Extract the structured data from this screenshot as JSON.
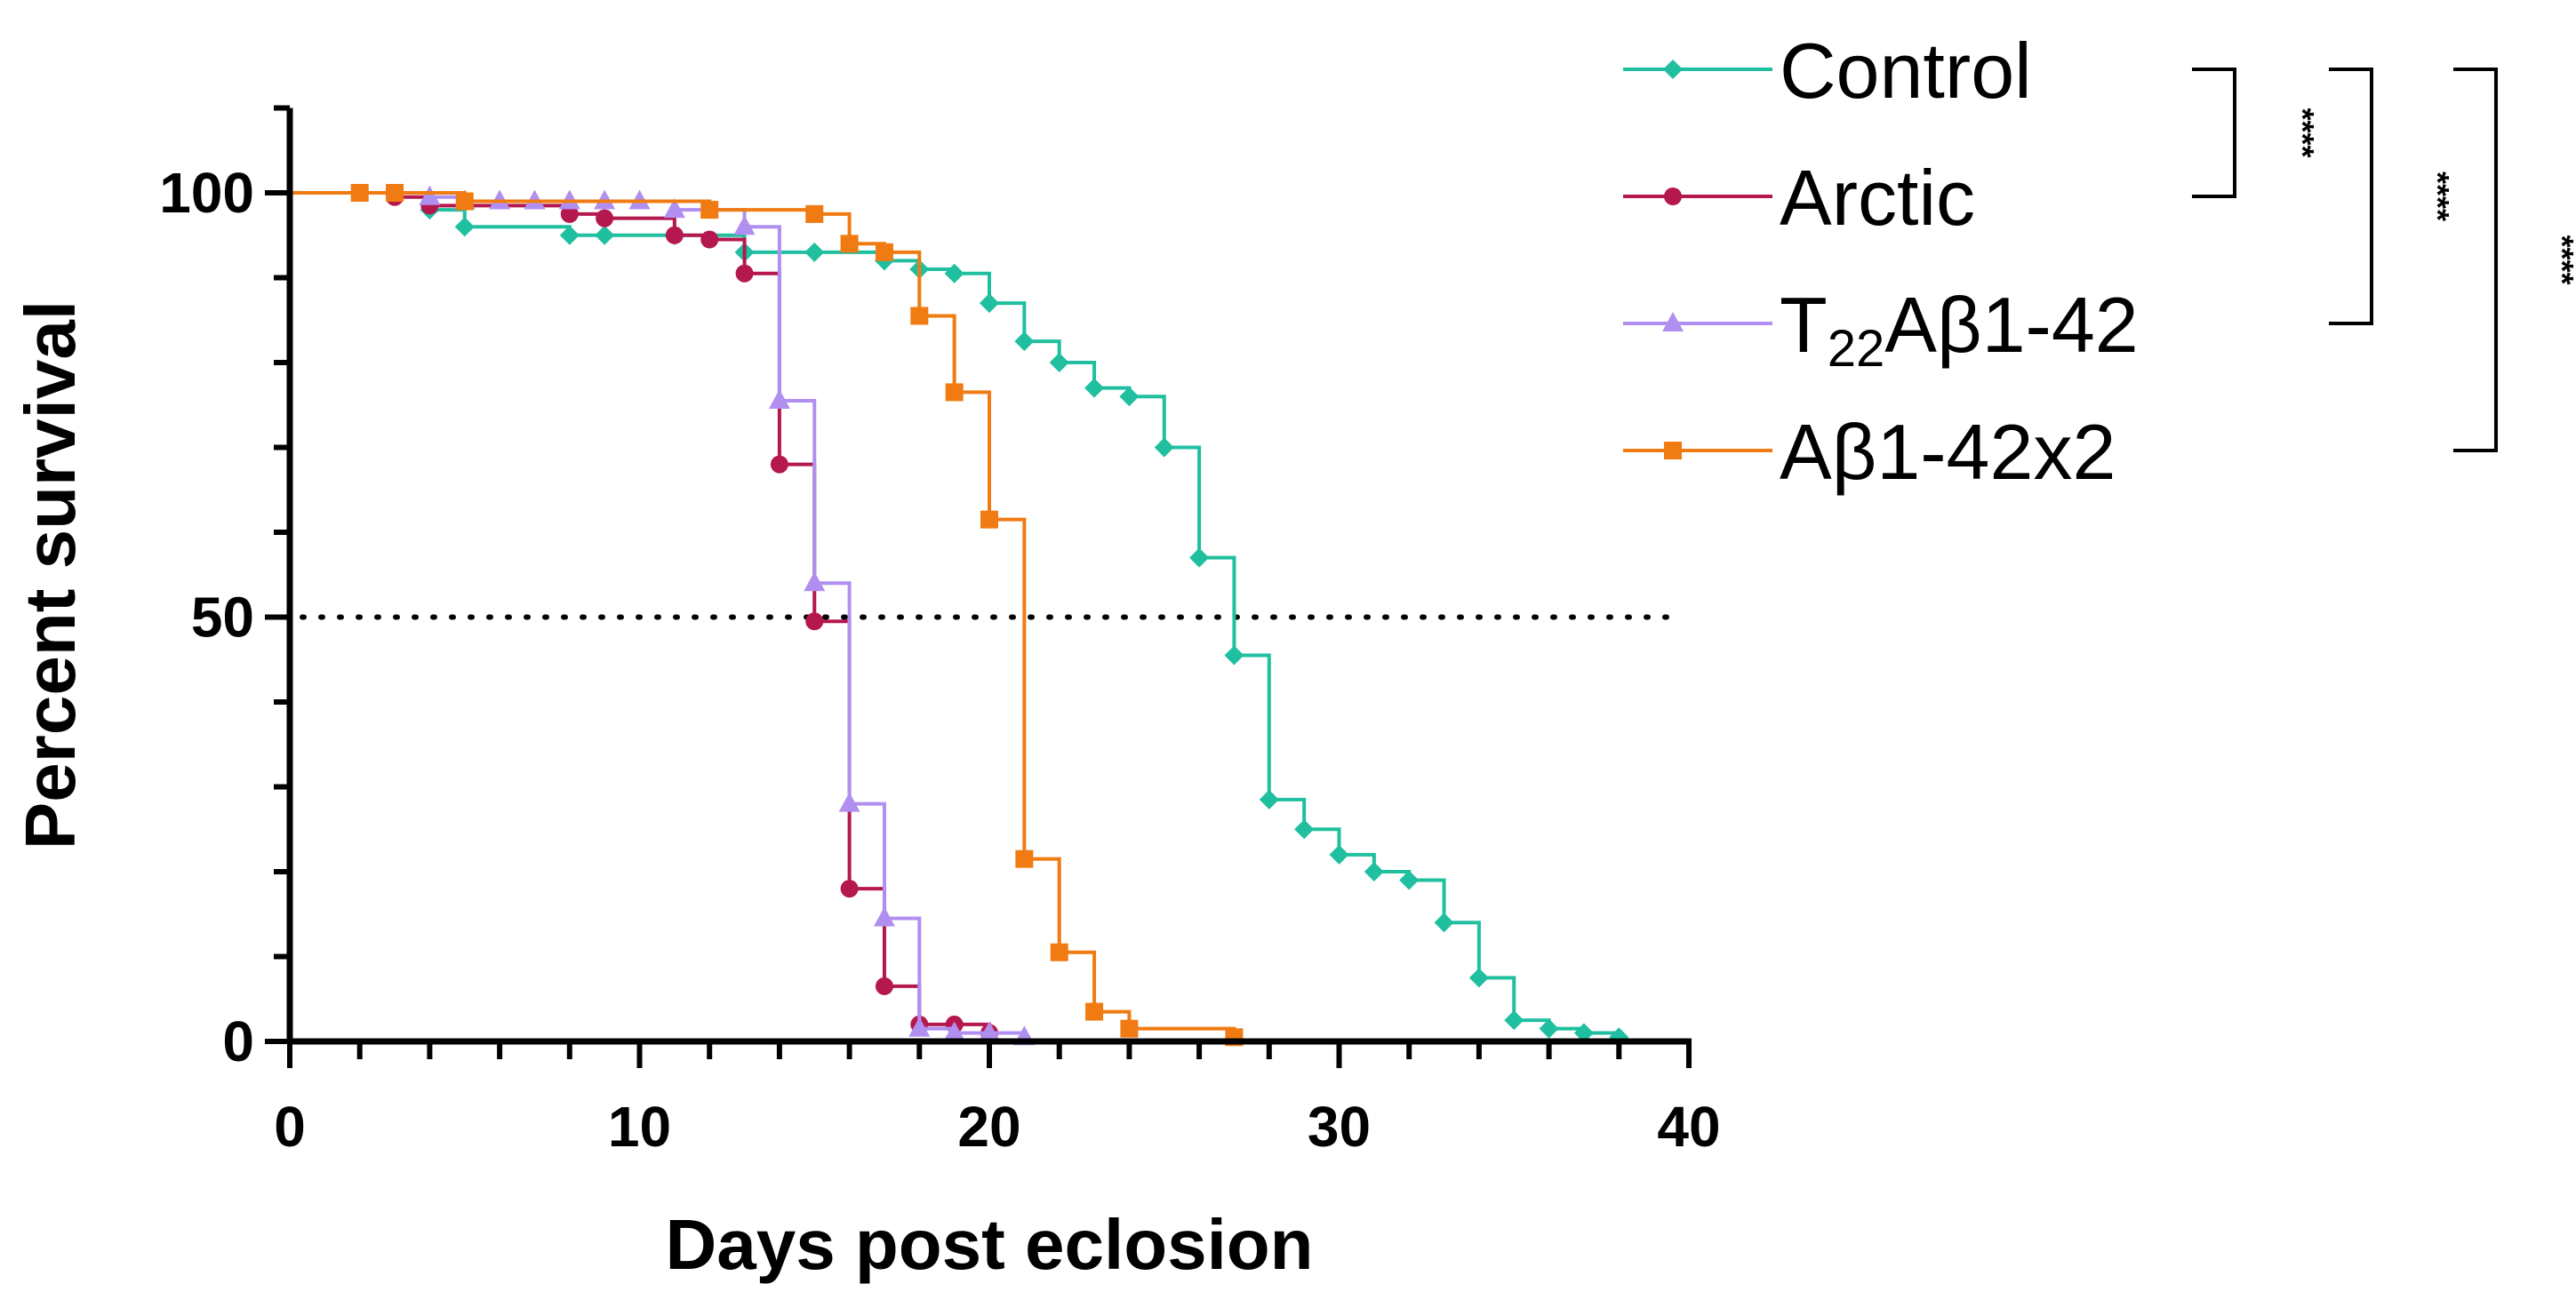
{
  "chart_data": {
    "type": "line",
    "subtype": "kaplan-meier step survival curves",
    "title": "",
    "xlabel": "Days post eclosion",
    "ylabel": "Percent survival",
    "xlim": [
      0,
      40
    ],
    "ylim": [
      0,
      110
    ],
    "xticks": [
      0,
      10,
      20,
      30,
      40
    ],
    "yticks": [
      0,
      50,
      100
    ],
    "xtick_labels": [
      "0",
      "10",
      "20",
      "30",
      "40"
    ],
    "ytick_labels": [
      "0",
      "50",
      "100"
    ],
    "reference_line": {
      "y": 50,
      "x_range": [
        0,
        39.5
      ],
      "style": "dotted"
    },
    "legend_position": "top-right, outside plot",
    "series": [
      {
        "name": "Control",
        "sub": "",
        "name_rest": "",
        "color": "#1fbf9f",
        "marker": "diamond",
        "x": [
          0,
          4,
          5,
          8,
          9,
          11,
          13,
          15,
          17,
          18,
          19,
          20,
          21,
          22,
          23,
          24,
          25,
          26,
          27,
          28,
          29,
          30,
          31,
          32,
          33,
          34,
          35,
          36,
          37,
          38
        ],
        "y": [
          100,
          98,
          96,
          95,
          95,
          95,
          93,
          93,
          92,
          91,
          90.5,
          87,
          82.5,
          80,
          77,
          76,
          70,
          57,
          45.5,
          28.5,
          25,
          22,
          20,
          19,
          14,
          7.5,
          2.5,
          1.5,
          1,
          0.5
        ]
      },
      {
        "name": "Arctic",
        "sub": "",
        "name_rest": "",
        "color": "#b5174f",
        "marker": "circle",
        "x": [
          0,
          3,
          4,
          8,
          9,
          11,
          12,
          13,
          14,
          15,
          16,
          17,
          18,
          19,
          20
        ],
        "y": [
          100,
          99.5,
          98.5,
          97.5,
          97,
          95,
          94.5,
          90.5,
          68,
          49.5,
          18,
          6.5,
          2,
          2,
          1
        ]
      },
      {
        "name": "T",
        "sub": "22",
        "name_rest": "Aβ1-42",
        "color": "#b08ff0",
        "marker": "triangle",
        "x": [
          0,
          4,
          5,
          6,
          7,
          8,
          9,
          10,
          11,
          13,
          14,
          15,
          16,
          17,
          18,
          19,
          20,
          21
        ],
        "y": [
          100,
          99.5,
          99,
          99,
          99,
          99,
          99,
          99,
          98,
          96,
          75.5,
          54,
          28,
          14.5,
          1.5,
          1,
          1,
          0.5
        ]
      },
      {
        "name": "Aβ1-42x2",
        "sub": "",
        "name_rest": "",
        "color": "#f07b12",
        "marker": "square",
        "x": [
          0,
          2,
          3,
          5,
          12,
          15,
          16,
          17,
          18,
          19,
          20,
          21,
          22,
          23,
          24,
          27
        ],
        "y": [
          100,
          100,
          100,
          99,
          98,
          97.5,
          94,
          93,
          85.5,
          76.5,
          61.5,
          21.5,
          10.5,
          3.5,
          1.5,
          0.5
        ]
      }
    ],
    "significance": [
      {
        "between": [
          "Control",
          "Arctic"
        ],
        "label": "****"
      },
      {
        "between": [
          "Control",
          "T22Aβ1-42"
        ],
        "label": "****"
      },
      {
        "between": [
          "Control",
          "Aβ1-42x2"
        ],
        "label": "****"
      }
    ]
  }
}
